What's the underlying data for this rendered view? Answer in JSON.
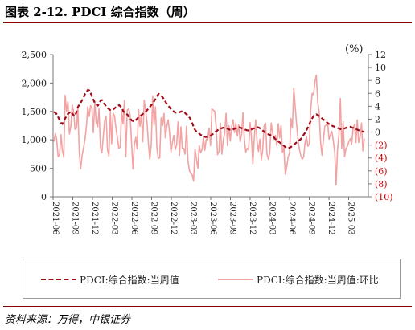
{
  "title": "图表 2-12. PDCI 综合指数（周）",
  "source": "资料来源：万得，中银证券",
  "colors": {
    "pdci": "#a00d1a",
    "wow": "#f2a3a3",
    "negative_tick": "#cc0000",
    "rule": "#8b0000"
  },
  "chart_data": {
    "type": "line",
    "left_axis": {
      "ylim": [
        0,
        2500
      ],
      "ticks": [
        "0",
        "500",
        "1,000",
        "1,500",
        "2,000",
        "2,500"
      ]
    },
    "right_axis": {
      "unit_label": "(%)",
      "ylim": [
        -10,
        12
      ],
      "ticks": [
        "(10)",
        "(8)",
        "(6)",
        "(4)",
        "(2)",
        "0",
        "2",
        "4",
        "6",
        "8",
        "10",
        "12"
      ],
      "tick_values": [
        -10,
        -8,
        -6,
        -4,
        -2,
        0,
        2,
        4,
        6,
        8,
        10,
        12
      ]
    },
    "x_ticks": [
      "2021-06",
      "2021-09",
      "2021-12",
      "2022-03",
      "2022-06",
      "2022-09",
      "2022-12",
      "2023-03",
      "2023-06",
      "2023-09",
      "2023-12",
      "2024-03",
      "2024-06",
      "2024-09",
      "2024-12",
      "2025-03"
    ],
    "legend": [
      "PDCI:综合指数:当周值",
      "PDCI:综合指数:当周值:环比"
    ],
    "series": [
      {
        "name": "PDCI:综合指数:当周值",
        "axis": "left",
        "style": "dashed",
        "values": [
          1490,
          1480,
          1450,
          1400,
          1350,
          1300,
          1280,
          1320,
          1380,
          1420,
          1460,
          1480,
          1500,
          1460,
          1430,
          1420,
          1500,
          1580,
          1620,
          1660,
          1700,
          1750,
          1810,
          1840,
          1880,
          1870,
          1820,
          1760,
          1700,
          1640,
          1620,
          1600,
          1650,
          1690,
          1700,
          1660,
          1620,
          1580,
          1560,
          1540,
          1520,
          1520,
          1540,
          1560,
          1580,
          1600,
          1610,
          1590,
          1560,
          1500,
          1480,
          1460,
          1440,
          1400,
          1370,
          1340,
          1330,
          1330,
          1350,
          1380,
          1400,
          1420,
          1440,
          1460,
          1480,
          1500,
          1530,
          1560,
          1590,
          1620,
          1650,
          1690,
          1730,
          1780,
          1810,
          1800,
          1770,
          1740,
          1700,
          1660,
          1620,
          1590,
          1560,
          1530,
          1510,
          1490,
          1480,
          1470,
          1480,
          1490,
          1500,
          1500,
          1490,
          1460,
          1440,
          1420,
          1380,
          1330,
          1270,
          1200,
          1160,
          1140,
          1120,
          1100,
          1080,
          1070,
          1060,
          1050,
          1050,
          1050,
          1060,
          1080,
          1100,
          1120,
          1140,
          1160,
          1180,
          1190,
          1200,
          1210,
          1215,
          1210,
          1200,
          1190,
          1180,
          1175,
          1180,
          1190,
          1200,
          1210,
          1220,
          1220,
          1210,
          1200,
          1190,
          1180,
          1170,
          1165,
          1170,
          1180,
          1190,
          1200,
          1210,
          1220,
          1220,
          1210,
          1190,
          1170,
          1150,
          1130,
          1110,
          1100,
          1090,
          1080,
          1070,
          1050,
          1020,
          1000,
          980,
          960,
          940,
          920,
          900,
          880,
          860,
          850,
          860,
          870,
          890,
          910,
          930,
          950,
          970,
          990,
          1010,
          1040,
          1080,
          1120,
          1160,
          1210,
          1270,
          1320,
          1370,
          1410,
          1440,
          1450,
          1440,
          1420,
          1400,
          1380,
          1360,
          1340,
          1320,
          1300,
          1280,
          1260,
          1250,
          1240,
          1230,
          1220,
          1210,
          1200,
          1190,
          1185,
          1190,
          1200,
          1210,
          1220,
          1230,
          1230,
          1220,
          1210,
          1200,
          1190,
          1180,
          1170,
          1160,
          1150,
          1145,
          1140
        ]
      },
      {
        "name": "PDCI:综合指数:当周值:环比",
        "axis": "right",
        "style": "solid",
        "values": [
          -1.5,
          -0.2,
          -1.2,
          -3.8,
          -3.5,
          -0.4,
          -2.8,
          -3.9,
          5.7,
          3.2,
          4.7,
          -0.3,
          0.9,
          4.2,
          3.1,
          0.4,
          0.6,
          3.8,
          -3.2,
          -5.7,
          -3.6,
          -2.5,
          -1.2,
          0.8,
          3.9,
          2.4,
          4.1,
          3.6,
          -0.1,
          4.8,
          1.5,
          0.8,
          3.6,
          -2.3,
          -3.2,
          -0.7,
          1.8,
          2.5,
          -2.7,
          -3.7,
          3.1,
          -1.8,
          2.9,
          2.5,
          0.6,
          -0.9,
          -2.5,
          -2.3,
          3.2,
          1.3,
          4.9,
          -3.8,
          3.4,
          3.6,
          2.7,
          -1.4,
          -5.7,
          -2.0,
          -0.8,
          -2.6,
          3.5,
          0.9,
          2.7,
          -1.5,
          4.9,
          3.4,
          1.5,
          -1.9,
          -4.2,
          -1.8,
          5.6,
          1.1,
          3.9,
          -2.5,
          -4.1,
          -4.0,
          2.2,
          1.0,
          2.9,
          -0.9,
          0.9,
          1.9,
          -0.2,
          -3.1,
          -1.6,
          -0.5,
          -2.7,
          -2.0,
          1.6,
          -3.6,
          0.8,
          -2.5,
          -2.5,
          -3.4,
          0.9,
          -4.4,
          -5.9,
          -6.4,
          -6.6,
          -7.6,
          -2.6,
          -4.1,
          -5.6,
          -2.1,
          -3.2,
          -2.7,
          -0.8,
          -2.8,
          -1.1,
          -1.2,
          0.6,
          -2.1,
          3.6,
          3.4,
          3.2,
          0.8,
          -3.5,
          -3.0,
          1.4,
          -3.4,
          -1.3,
          -0.2,
          2.9,
          -2.1,
          1.0,
          -1.4,
          0.9,
          1.9,
          -0.1,
          1.4,
          -0.6,
          1.2,
          -1.5,
          -0.3,
          3.0,
          -1.2,
          -3.1,
          -2.5,
          -2.7,
          1.5,
          -0.8,
          -4.9,
          -1.0,
          1.9,
          -1.5,
          -3.0,
          -1.1,
          -4.3,
          -2.6,
          1.0,
          1.4,
          -3.4,
          -4.2,
          -3.1,
          1.4,
          -0.1,
          -1.1,
          -0.5,
          -2.1,
          1.3,
          -0.9,
          1.0,
          -3.1,
          -2.4,
          -6.5,
          -5.4,
          -3.8,
          -3.2,
          2.1,
          0.6,
          6.8,
          4.0,
          1.2,
          -1.1,
          -2.7,
          -3.6,
          -4.2,
          -3.8,
          -1.6,
          -0.7,
          -2.2,
          -1.8,
          3.4,
          6.0,
          5.8,
          7.8,
          8.8,
          4.6,
          3.0,
          -1.5,
          -3.6,
          -1.2,
          0.9,
          1.1,
          1.4,
          -1.1,
          -0.4,
          0.1,
          -1.3,
          -3.1,
          -8.2,
          -2.6,
          -0.5,
          5.2,
          -2.5,
          1.6,
          -3.8,
          -2.5,
          -2.2,
          -1.5,
          -1.0,
          -1.9,
          0.5,
          1.2,
          -1.6,
          1.9,
          -1.6,
          -0.8,
          1.4,
          -2.9,
          -1.0
        ]
      }
    ]
  }
}
